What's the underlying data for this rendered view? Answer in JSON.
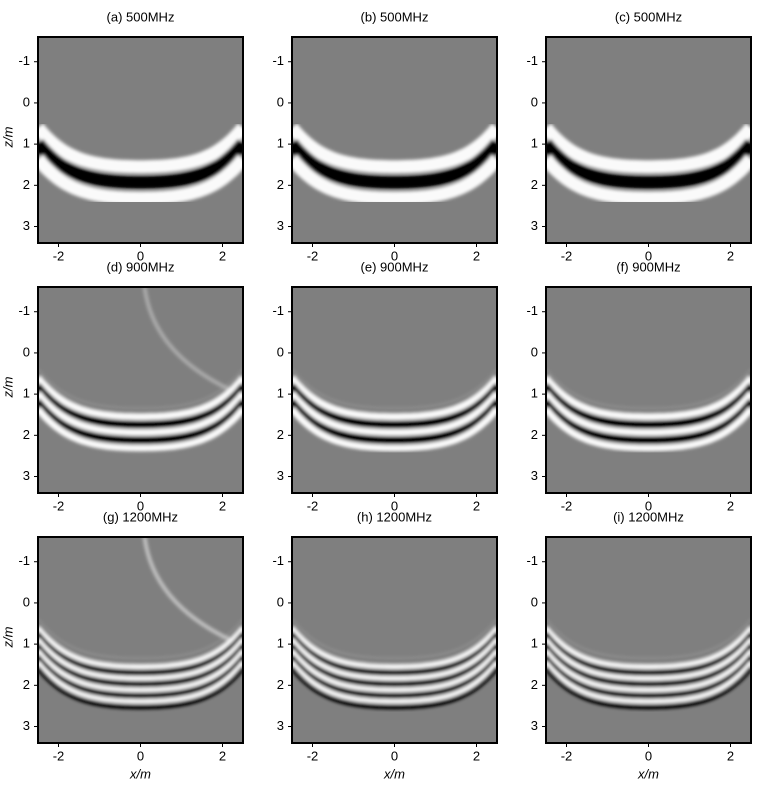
{
  "chart_data": {
    "type": "image-grid",
    "xlabel": "x/m",
    "ylabel": "z/m",
    "xlim": [
      -2.5,
      2.5
    ],
    "ylim": [
      -1.6,
      3.4
    ],
    "xticks": [
      -2,
      0,
      2
    ],
    "yticks": [
      -1,
      0,
      1,
      2,
      3
    ],
    "panels": [
      {
        "title": "(a) 500MHz"
      },
      {
        "title": "(b) 500MHz"
      },
      {
        "title": "(c) 500MHz"
      },
      {
        "title": "(d) 900MHz"
      },
      {
        "title": "(e) 900MHz"
      },
      {
        "title": "(f) 900MHz"
      },
      {
        "title": "(g) 1200MHz"
      },
      {
        "title": "(h) 1200MHz"
      },
      {
        "title": "(i) 1200MHz"
      }
    ]
  }
}
